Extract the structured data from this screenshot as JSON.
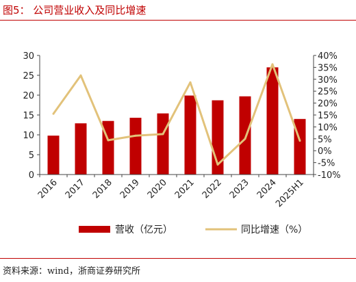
{
  "header": {
    "title": "图5：  公司营业收入及同比增速"
  },
  "source": "资料来源：wind，浙商证券研究所",
  "colors": {
    "accent": "#c00000",
    "bar": "#c00000",
    "line": "#e2c27a"
  },
  "chart_data": {
    "type": "bar",
    "categories": [
      "2016",
      "2017",
      "2018",
      "2019",
      "2020",
      "2021",
      "2022",
      "2023",
      "2024",
      "2025H1"
    ],
    "series": [
      {
        "name": "营收（亿元）",
        "type": "bar",
        "axis": "left",
        "values": [
          9.8,
          12.9,
          13.5,
          14.3,
          15.4,
          19.9,
          18.7,
          19.7,
          27.0,
          14.0
        ]
      },
      {
        "name": "同比增速（%）",
        "type": "line",
        "axis": "right",
        "values": [
          15.5,
          31.6,
          4.4,
          6.3,
          7.0,
          28.7,
          -5.8,
          5.0,
          36.3,
          4.2
        ]
      }
    ],
    "ylim_left": [
      0,
      30
    ],
    "yticks_left": [
      "0",
      "5",
      "10",
      "15",
      "20",
      "25",
      "30"
    ],
    "ylim_right": [
      -10,
      40
    ],
    "yticks_right": [
      "-10%",
      "-5%",
      "0%",
      "5%",
      "10%",
      "15%",
      "20%",
      "25%",
      "30%",
      "35%",
      "40%"
    ],
    "legend_position": "bottom",
    "grid": false
  }
}
